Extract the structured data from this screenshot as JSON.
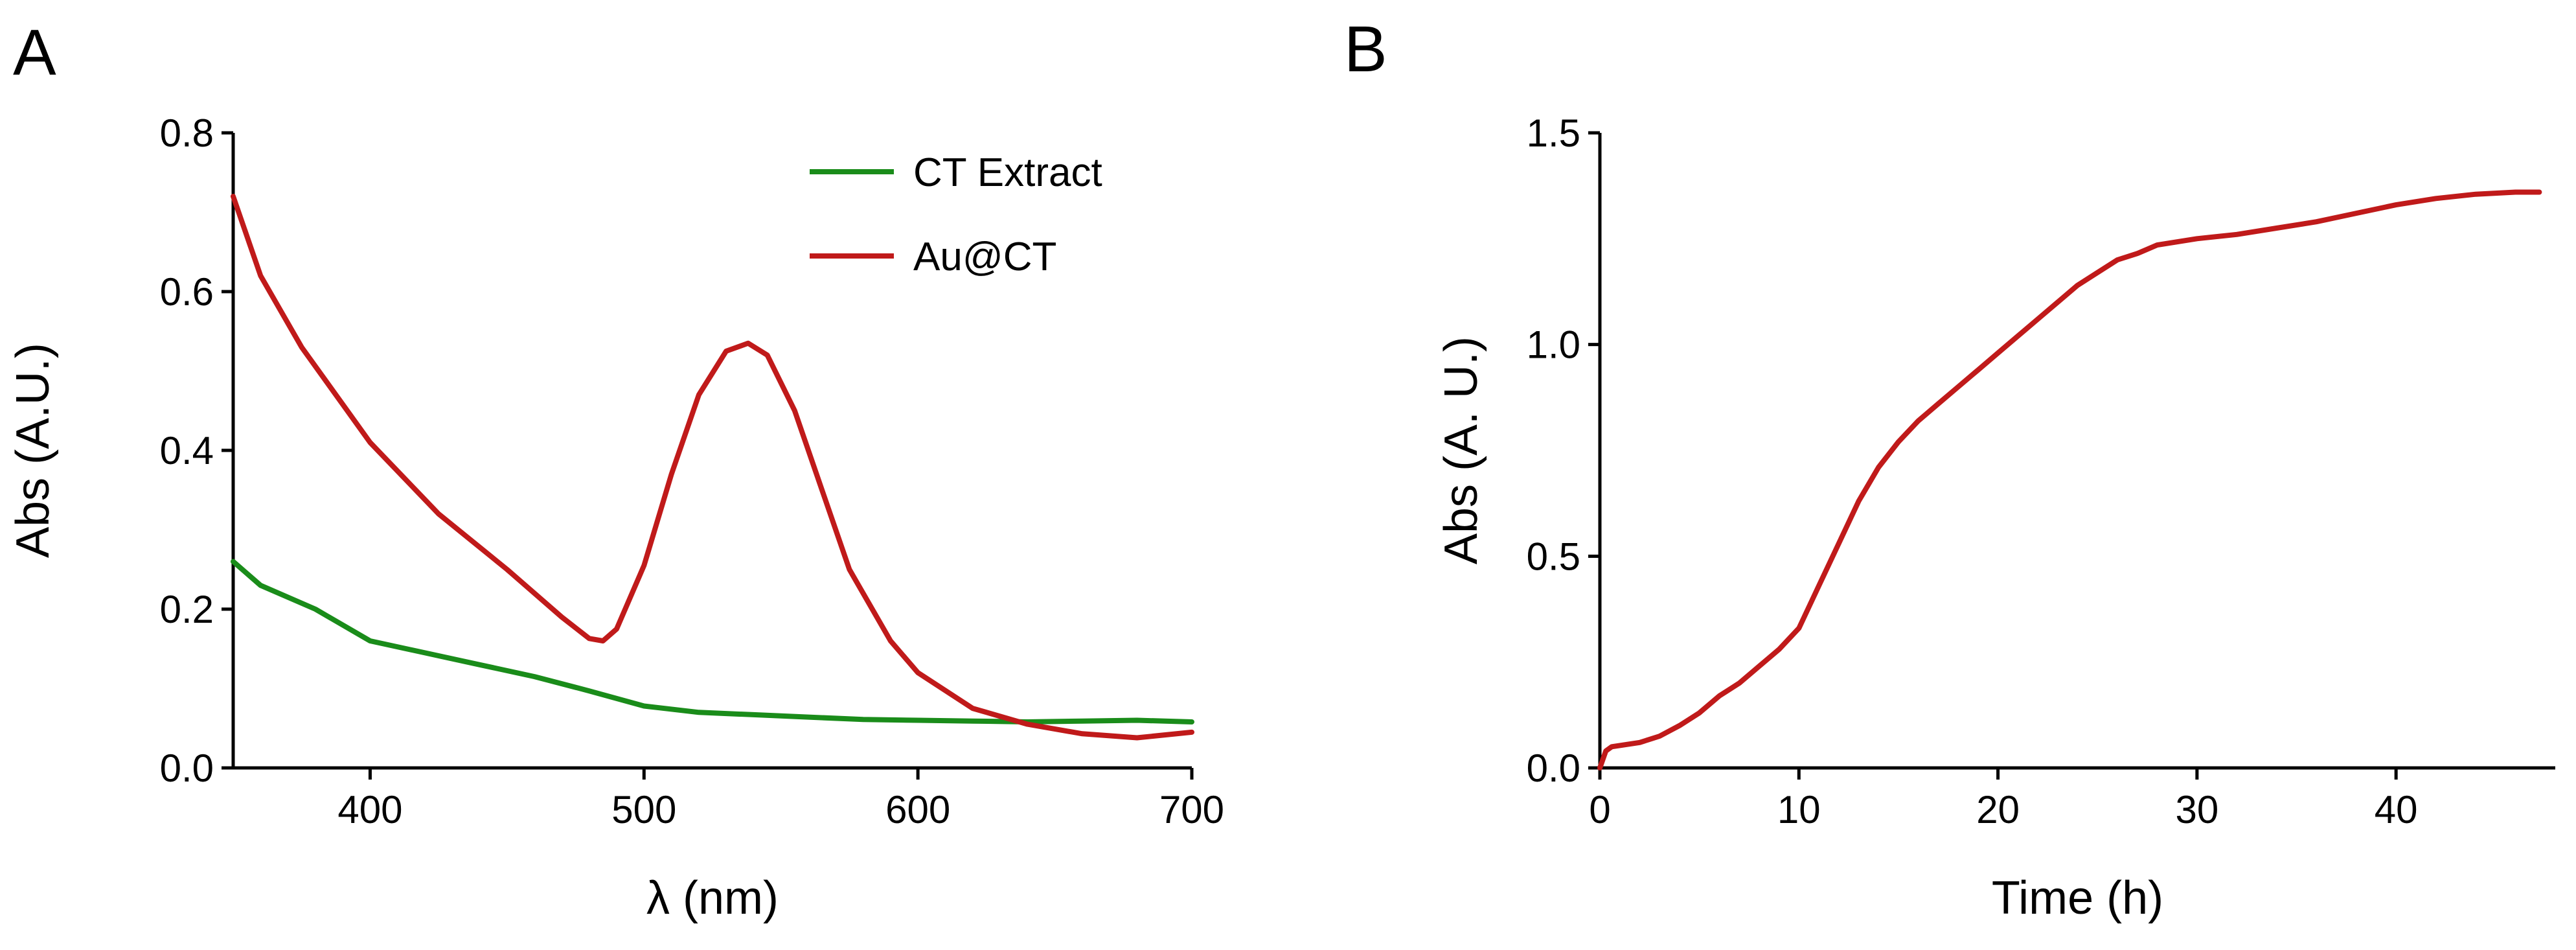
{
  "colors": {
    "green": "#1a8c1a",
    "red": "#c01a1a",
    "axis": "#000000"
  },
  "chart_data": [
    {
      "type": "line",
      "panel_label": "A",
      "xlabel": "λ (nm)",
      "ylabel": "Abs (A.U.)",
      "xlim": [
        350,
        700
      ],
      "ylim": [
        0,
        0.8
      ],
      "xticks": [
        400,
        500,
        600,
        700
      ],
      "xtick_labels": [
        "400",
        "500",
        "600",
        "700"
      ],
      "yticks": [
        0.0,
        0.2,
        0.4,
        0.6,
        0.8
      ],
      "ytick_labels": [
        "0.0",
        "0.2",
        "0.4",
        "0.6",
        "0.8"
      ],
      "legend": "top-right",
      "grid": false,
      "series": [
        {
          "name": "CT Extract",
          "color": "#1a8c1a",
          "x": [
            350,
            360,
            380,
            400,
            420,
            440,
            460,
            480,
            500,
            520,
            540,
            560,
            580,
            600,
            620,
            640,
            660,
            680,
            700
          ],
          "y": [
            0.26,
            0.23,
            0.2,
            0.16,
            0.145,
            0.13,
            0.115,
            0.097,
            0.078,
            0.07,
            0.067,
            0.064,
            0.061,
            0.06,
            0.059,
            0.058,
            0.059,
            0.06,
            0.058
          ]
        },
        {
          "name": "Au@CT",
          "color": "#c01a1a",
          "x": [
            350,
            360,
            375,
            400,
            425,
            450,
            470,
            480,
            485,
            490,
            500,
            510,
            520,
            530,
            538,
            545,
            555,
            565,
            575,
            590,
            600,
            620,
            640,
            660,
            680,
            700
          ],
          "y": [
            0.72,
            0.62,
            0.53,
            0.41,
            0.32,
            0.25,
            0.19,
            0.163,
            0.16,
            0.175,
            0.255,
            0.37,
            0.47,
            0.525,
            0.535,
            0.52,
            0.45,
            0.35,
            0.25,
            0.16,
            0.12,
            0.075,
            0.055,
            0.043,
            0.038,
            0.045
          ]
        }
      ]
    },
    {
      "type": "line",
      "panel_label": "B",
      "xlabel": "Time (h)",
      "ylabel": "Abs (A. U.)",
      "xlim": [
        0,
        48
      ],
      "ylim": [
        0,
        1.5
      ],
      "xticks": [
        0,
        10,
        20,
        30,
        40
      ],
      "xtick_labels": [
        "0",
        "10",
        "20",
        "30",
        "40"
      ],
      "yticks": [
        0.0,
        0.5,
        1.0,
        1.5
      ],
      "ytick_labels": [
        "0.0",
        "0.5",
        "1.0",
        "1.5"
      ],
      "grid": false,
      "series": [
        {
          "name": "",
          "color": "#c01a1a",
          "x": [
            0,
            0.3,
            0.6,
            2,
            3,
            4,
            5,
            6,
            7,
            8,
            9,
            10,
            11,
            12,
            13,
            14,
            15,
            16,
            17,
            18,
            19,
            20,
            21,
            22,
            23,
            24,
            25,
            26,
            27,
            28,
            30,
            32,
            34,
            36,
            38,
            40,
            42,
            44,
            46,
            47.2
          ],
          "y": [
            0.0,
            0.04,
            0.05,
            0.06,
            0.075,
            0.1,
            0.13,
            0.17,
            0.2,
            0.24,
            0.28,
            0.33,
            0.43,
            0.53,
            0.63,
            0.71,
            0.77,
            0.82,
            0.86,
            0.9,
            0.94,
            0.98,
            1.02,
            1.06,
            1.1,
            1.14,
            1.17,
            1.2,
            1.215,
            1.235,
            1.25,
            1.26,
            1.275,
            1.29,
            1.31,
            1.33,
            1.345,
            1.355,
            1.36,
            1.36
          ]
        }
      ]
    }
  ]
}
